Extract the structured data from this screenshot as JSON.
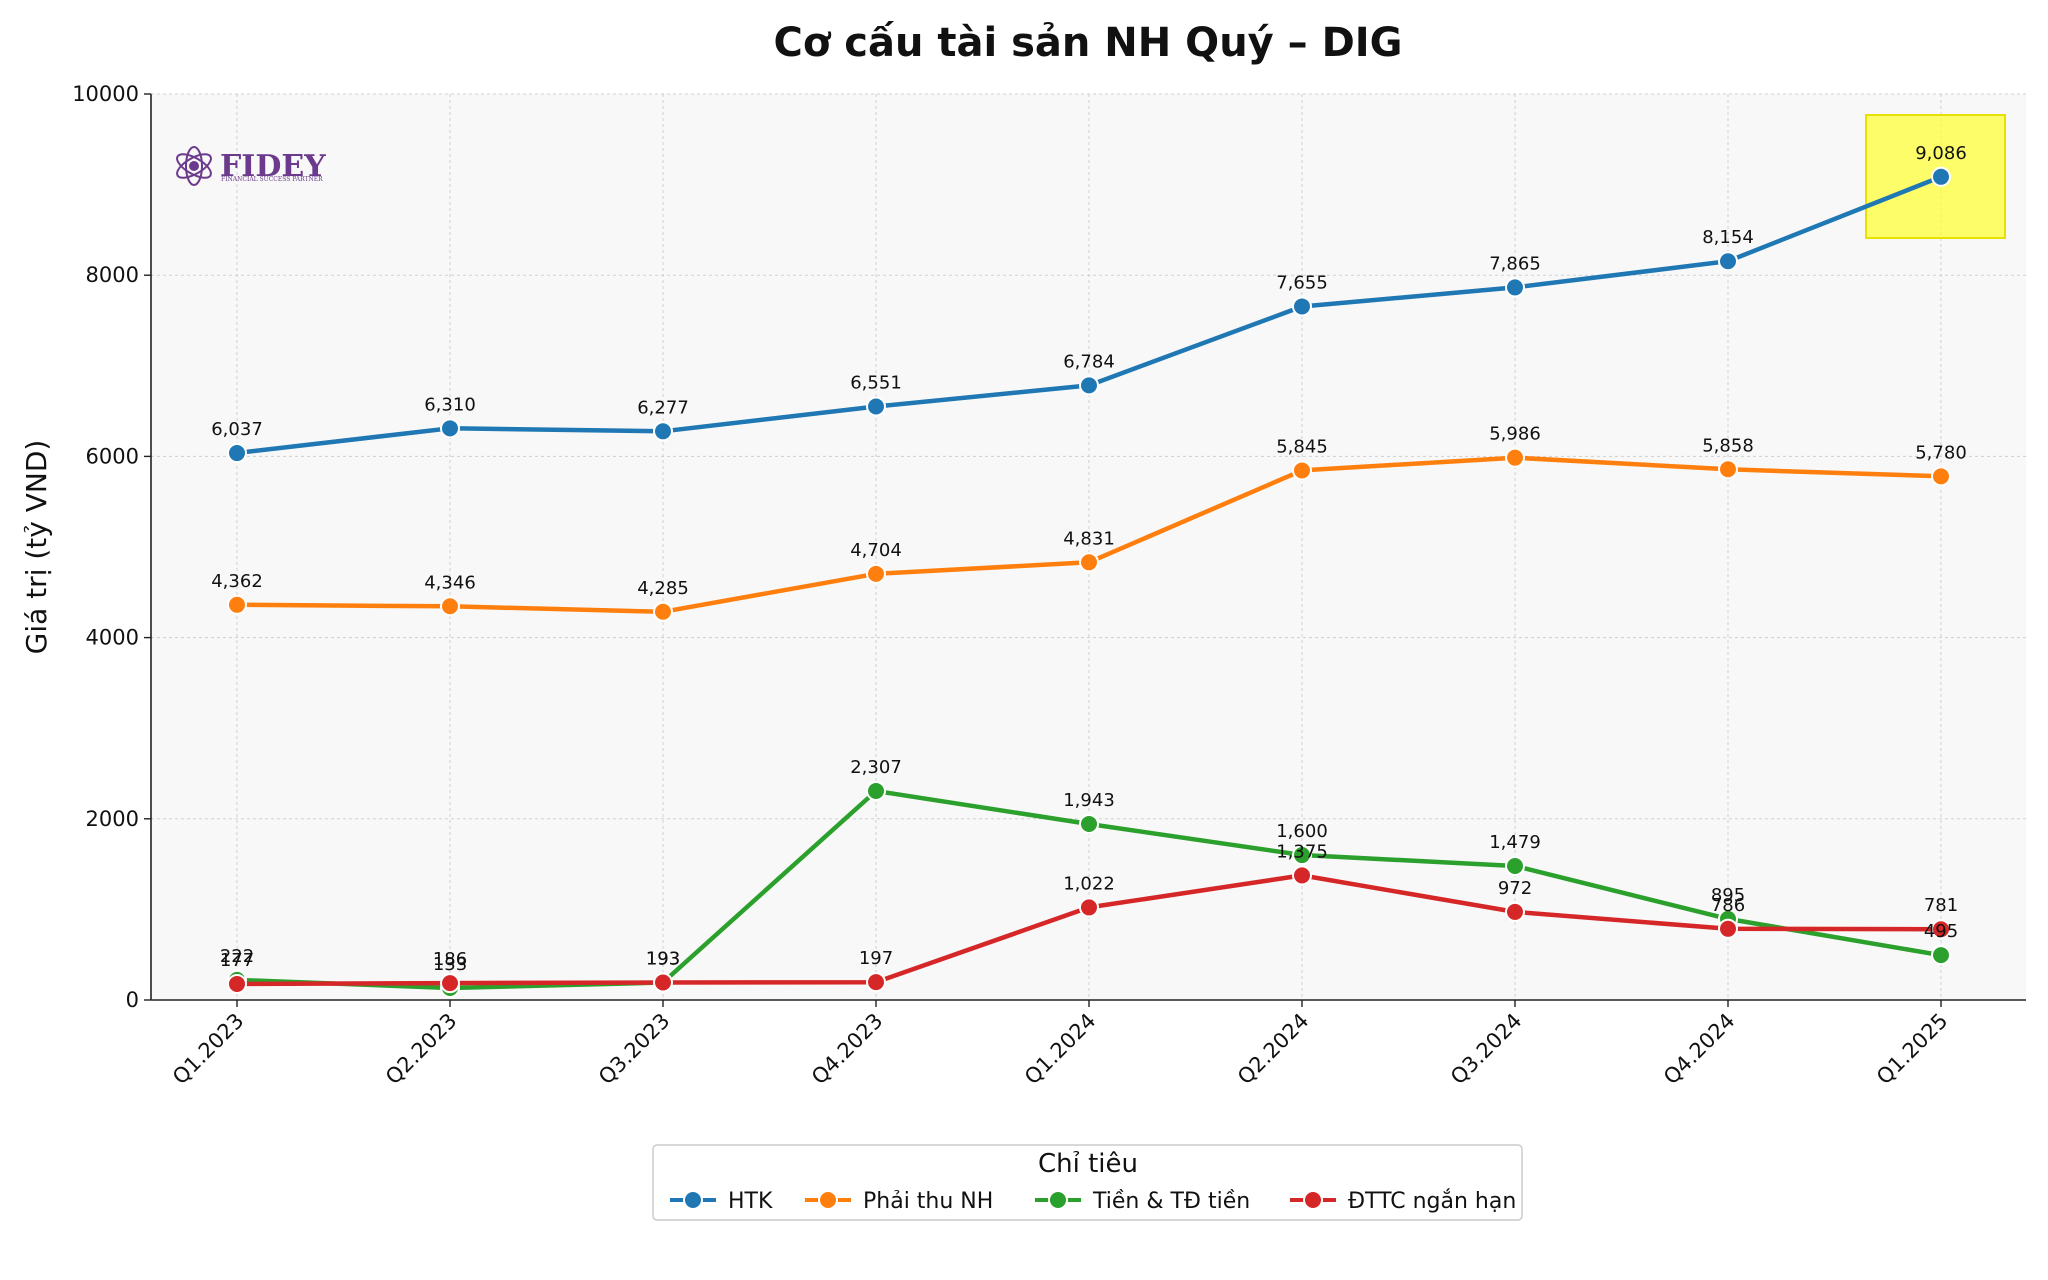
{
  "chart_data": {
    "type": "line",
    "title": "Cơ cấu tài sản NH Quý – DIG",
    "xlabel": "",
    "ylabel": "Giá trị (tỷ VND)",
    "ylim": [
      0,
      10000
    ],
    "yticks": [
      0,
      2000,
      4000,
      6000,
      8000,
      10000
    ],
    "grid": true,
    "legend_title": "Chỉ tiêu",
    "legend_position": "bottom-center",
    "categories": [
      "Q1.2023",
      "Q2.2023",
      "Q3.2023",
      "Q4.2023",
      "Q1.2024",
      "Q2.2024",
      "Q3.2024",
      "Q4.2024",
      "Q1.2025"
    ],
    "series": [
      {
        "name": "HTK",
        "color": "#1f77b4",
        "values": [
          6037,
          6310,
          6277,
          6551,
          6784,
          7655,
          7865,
          8154,
          9086
        ],
        "labels": [
          "6,037",
          "6,310",
          "6,277",
          "6,551",
          "6,784",
          "7,655",
          "7,865",
          "8,154",
          "9,086"
        ]
      },
      {
        "name": "Phải thu NH",
        "color": "#ff7f0e",
        "values": [
          4362,
          4346,
          4285,
          4704,
          4831,
          5845,
          5986,
          5858,
          5780
        ],
        "labels": [
          "4,362",
          "4,346",
          "4,285",
          "4,704",
          "4,831",
          "5,845",
          "5,986",
          "5,858",
          "5,780"
        ]
      },
      {
        "name": "Tiền & TĐ tiền",
        "color": "#2ca02c",
        "values": [
          222,
          133,
          193,
          2307,
          1943,
          1600,
          1479,
          895,
          495
        ],
        "labels": [
          "222",
          "133",
          "193",
          "2,307",
          "1,943",
          "1,600",
          "1,479",
          "895",
          "495"
        ]
      },
      {
        "name": "ĐTTC ngắn hạn",
        "color": "#d62728",
        "values": [
          177,
          186,
          193,
          197,
          1022,
          1375,
          972,
          786,
          781
        ],
        "labels": [
          "177",
          "186",
          "193",
          "197",
          "1,022",
          "1,375",
          "972",
          "786",
          "781"
        ]
      }
    ],
    "highlight": {
      "series": "HTK",
      "category": "Q1.2025",
      "color": "#ffff33"
    }
  },
  "logo": {
    "text": "FIDEY",
    "tagline": "FINANCIAL SUCCESS PARTNER",
    "color": "#6b3a8c"
  }
}
